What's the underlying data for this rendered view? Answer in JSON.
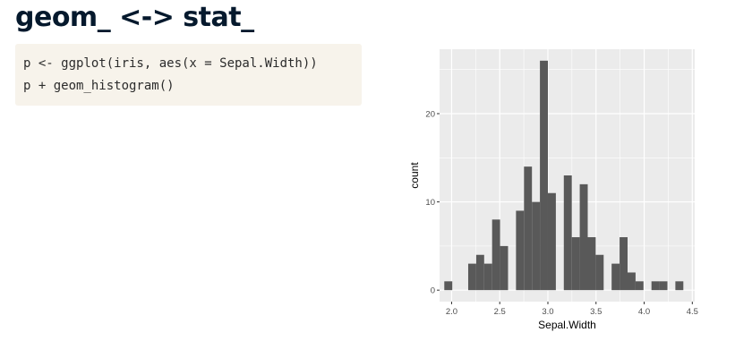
{
  "slide": {
    "title": "geom_ <-> stat_"
  },
  "code": {
    "lines": [
      "p <- ggplot(iris, aes(x = Sepal.Width))",
      "p + geom_histogram()"
    ]
  },
  "colors": {
    "panel_bg": "#ebebeb",
    "grid": "#ffffff",
    "bar_fill": "#595959",
    "code_bg": "#f7f3eb",
    "title": "#05192d"
  },
  "chart_data": {
    "type": "bar",
    "xlabel": "Sepal.Width",
    "ylabel": "count",
    "x_ticks": [
      2.0,
      2.5,
      3.0,
      3.5,
      4.0,
      4.5
    ],
    "x_tick_labels": [
      "2.0",
      "2.5",
      "3.0",
      "3.5",
      "4.0",
      "4.5"
    ],
    "y_ticks": [
      0,
      10,
      20
    ],
    "y_tick_labels": [
      "0",
      "10",
      "20"
    ],
    "xlim": [
      1.875,
      4.525
    ],
    "ylim": [
      -1.3,
      27.3
    ],
    "bin_width": 0.0828,
    "bin_centers": [
      1.9655,
      2.0483,
      2.131,
      2.2138,
      2.2966,
      2.3793,
      2.4621,
      2.5448,
      2.6276,
      2.7103,
      2.7931,
      2.8759,
      2.9586,
      3.0414,
      3.1241,
      3.2069,
      3.2897,
      3.3724,
      3.4552,
      3.5379,
      3.6207,
      3.7034,
      3.7862,
      3.869,
      3.9517,
      4.0345,
      4.1172,
      4.2,
      4.2828,
      4.3655,
      4.4483
    ],
    "counts": [
      1,
      0,
      0,
      3,
      4,
      3,
      8,
      5,
      0,
      9,
      14,
      10,
      26,
      11,
      0,
      13,
      6,
      12,
      6,
      4,
      0,
      3,
      6,
      2,
      1,
      0,
      1,
      1,
      0,
      1,
      0
    ],
    "grid": true,
    "legend": "none"
  }
}
